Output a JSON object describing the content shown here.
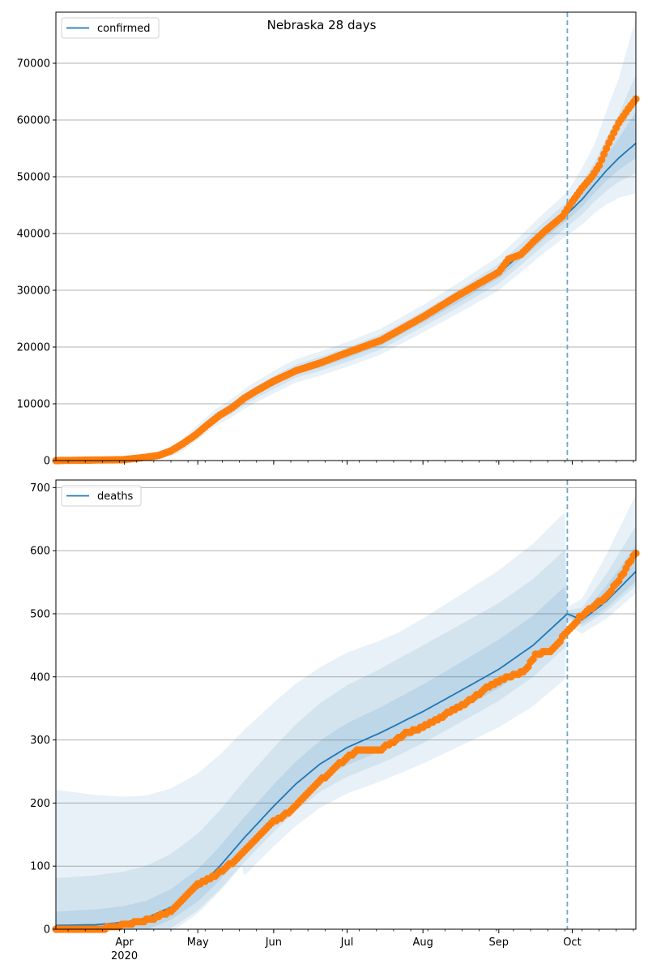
{
  "title": "Nebraska 28 days",
  "colors": {
    "line": "#1f77b4",
    "dots": "#ff7f0e",
    "band": "#1f77b4",
    "vline": "#6aa8cf",
    "grid": "#b0b0b0"
  },
  "x_axis": {
    "start": "2020-03-04",
    "end": "2020-10-27",
    "major_ticks": [
      {
        "date": "2020-04-01",
        "label": "Apr",
        "sublabel": "2020"
      },
      {
        "date": "2020-05-01",
        "label": "May",
        "sublabel": ""
      },
      {
        "date": "2020-06-01",
        "label": "Jun",
        "sublabel": ""
      },
      {
        "date": "2020-07-01",
        "label": "Jul",
        "sublabel": ""
      },
      {
        "date": "2020-08-01",
        "label": "Aug",
        "sublabel": ""
      },
      {
        "date": "2020-09-01",
        "label": "Sep",
        "sublabel": ""
      },
      {
        "date": "2020-10-01",
        "label": "Oct",
        "sublabel": ""
      }
    ],
    "forecast_start": "2020-09-29"
  },
  "chart_data": [
    {
      "type": "line",
      "legend": "confirmed",
      "legend_position": "top-left",
      "grid": "y",
      "ylim": [
        0,
        79000
      ],
      "yticks": [
        0,
        10000,
        20000,
        30000,
        40000,
        50000,
        60000,
        70000
      ],
      "model": [
        [
          "2020-03-04",
          0
        ],
        [
          "2020-03-20",
          60
        ],
        [
          "2020-04-01",
          200
        ],
        [
          "2020-04-10",
          500
        ],
        [
          "2020-04-20",
          1600
        ],
        [
          "2020-04-25",
          2800
        ],
        [
          "2020-05-01",
          5000
        ],
        [
          "2020-05-08",
          7500
        ],
        [
          "2020-05-15",
          9300
        ],
        [
          "2020-05-22",
          11400
        ],
        [
          "2020-06-01",
          13800
        ],
        [
          "2020-06-10",
          15800
        ],
        [
          "2020-06-20",
          17100
        ],
        [
          "2020-07-01",
          18700
        ],
        [
          "2020-07-15",
          21000
        ],
        [
          "2020-08-01",
          25000
        ],
        [
          "2020-08-15",
          28500
        ],
        [
          "2020-09-01",
          33000
        ],
        [
          "2020-09-10",
          36400
        ],
        [
          "2020-09-20",
          40300
        ],
        [
          "2020-09-29",
          43500
        ],
        [
          "2020-10-05",
          46000
        ],
        [
          "2020-10-10",
          48600
        ],
        [
          "2020-10-15",
          51100
        ],
        [
          "2020-10-20",
          53300
        ],
        [
          "2020-10-27",
          55900
        ]
      ],
      "band_widths": [
        [
          "2020-03-04",
          0
        ],
        [
          "2020-04-01",
          100
        ],
        [
          "2020-05-01",
          1300
        ],
        [
          "2020-06-01",
          2000
        ],
        [
          "2020-07-01",
          2200
        ],
        [
          "2020-08-01",
          2400
        ],
        [
          "2020-09-01",
          3000
        ],
        [
          "2020-09-29",
          3800
        ],
        [
          "2020-10-10",
          5000
        ],
        [
          "2020-10-20",
          7000
        ],
        [
          "2020-10-27",
          8800
        ]
      ],
      "band_widths_upper": [
        [
          "2020-03-04",
          0
        ],
        [
          "2020-04-01",
          100
        ],
        [
          "2020-05-01",
          1300
        ],
        [
          "2020-06-01",
          2000
        ],
        [
          "2020-07-01",
          2200
        ],
        [
          "2020-08-01",
          2400
        ],
        [
          "2020-09-01",
          3000
        ],
        [
          "2020-09-29",
          3800
        ],
        [
          "2020-10-10",
          7000
        ],
        [
          "2020-10-20",
          14000
        ],
        [
          "2020-10-27",
          22000
        ]
      ],
      "observed": [
        [
          "2020-03-04",
          0
        ],
        [
          "2020-03-31",
          150
        ],
        [
          "2020-04-05",
          350
        ],
        [
          "2020-04-10",
          600
        ],
        [
          "2020-04-15",
          900
        ],
        [
          "2020-04-20",
          1700
        ],
        [
          "2020-04-25",
          3000
        ],
        [
          "2020-04-30",
          4500
        ],
        [
          "2020-05-05",
          6300
        ],
        [
          "2020-05-10",
          8000
        ],
        [
          "2020-05-15",
          9300
        ],
        [
          "2020-05-20",
          11000
        ],
        [
          "2020-05-25",
          12300
        ],
        [
          "2020-06-01",
          14000
        ],
        [
          "2020-06-10",
          15800
        ],
        [
          "2020-06-20",
          17200
        ],
        [
          "2020-07-01",
          19000
        ],
        [
          "2020-07-15",
          21200
        ],
        [
          "2020-08-01",
          25300
        ],
        [
          "2020-08-15",
          29000
        ],
        [
          "2020-09-01",
          33200
        ],
        [
          "2020-09-05",
          35500
        ],
        [
          "2020-09-10",
          36300
        ],
        [
          "2020-09-15",
          38500
        ],
        [
          "2020-09-20",
          40500
        ],
        [
          "2020-09-27",
          43000
        ],
        [
          "2020-09-30",
          45000
        ],
        [
          "2020-10-05",
          48000
        ],
        [
          "2020-10-09",
          50000
        ],
        [
          "2020-10-12",
          52000
        ],
        [
          "2020-10-16",
          56000
        ],
        [
          "2020-10-20",
          59500
        ],
        [
          "2020-10-24",
          62000
        ],
        [
          "2020-10-27",
          63700
        ]
      ]
    },
    {
      "type": "line",
      "legend": "deaths",
      "legend_position": "top-left",
      "grid": "y",
      "ylim": [
        0,
        712
      ],
      "yticks": [
        0,
        100,
        200,
        300,
        400,
        500,
        600,
        700
      ],
      "model": [
        [
          "2020-03-04",
          6
        ],
        [
          "2020-03-20",
          7
        ],
        [
          "2020-04-01",
          11
        ],
        [
          "2020-04-10",
          18
        ],
        [
          "2020-04-20",
          35
        ],
        [
          "2020-05-01",
          65
        ],
        [
          "2020-05-10",
          100
        ],
        [
          "2020-05-20",
          145
        ],
        [
          "2020-06-01",
          195
        ],
        [
          "2020-06-10",
          230
        ],
        [
          "2020-06-20",
          262
        ],
        [
          "2020-07-01",
          288
        ],
        [
          "2020-07-15",
          312
        ],
        [
          "2020-08-01",
          345
        ],
        [
          "2020-08-15",
          375
        ],
        [
          "2020-09-01",
          412
        ],
        [
          "2020-09-15",
          450
        ],
        [
          "2020-09-29",
          500
        ],
        [
          "2020-10-05",
          490
        ],
        [
          "2020-10-15",
          520
        ],
        [
          "2020-10-27",
          567
        ]
      ],
      "observed": [
        [
          "2020-03-04",
          0
        ],
        [
          "2020-03-25",
          2
        ],
        [
          "2020-04-05",
          10
        ],
        [
          "2020-04-12",
          16
        ],
        [
          "2020-04-20",
          28
        ],
        [
          "2020-04-26",
          50
        ],
        [
          "2020-05-01",
          70
        ],
        [
          "2020-05-10",
          90
        ],
        [
          "2020-05-18",
          115
        ],
        [
          "2020-05-24",
          140
        ],
        [
          "2020-06-01",
          170
        ],
        [
          "2020-06-08",
          188
        ],
        [
          "2020-06-14",
          212
        ],
        [
          "2020-06-20",
          235
        ],
        [
          "2020-06-28",
          262
        ],
        [
          "2020-07-05",
          283
        ],
        [
          "2020-07-15",
          285
        ],
        [
          "2020-07-25",
          310
        ],
        [
          "2020-08-01",
          320
        ],
        [
          "2020-08-10",
          340
        ],
        [
          "2020-08-20",
          362
        ],
        [
          "2020-08-28",
          385
        ],
        [
          "2020-09-05",
          400
        ],
        [
          "2020-09-12",
          410
        ],
        [
          "2020-09-16",
          435
        ],
        [
          "2020-09-22",
          441
        ],
        [
          "2020-09-27",
          462
        ],
        [
          "2020-10-01",
          478
        ],
        [
          "2020-10-04",
          495
        ],
        [
          "2020-10-10",
          512
        ],
        [
          "2020-10-15",
          528
        ],
        [
          "2020-10-20",
          552
        ],
        [
          "2020-10-24",
          578
        ],
        [
          "2020-10-27",
          596
        ]
      ]
    }
  ]
}
